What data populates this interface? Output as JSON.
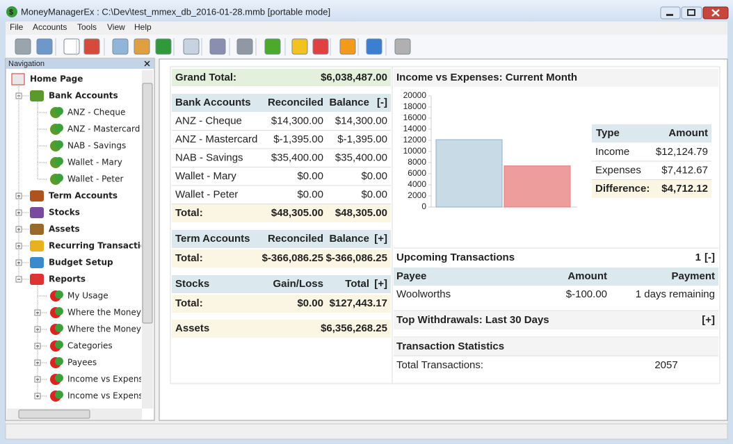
{
  "window": {
    "title": "MoneyManagerEx : C:\\Dev\\test_mmex_db_2016-01-28.mmb [portable mode]"
  },
  "menu": [
    "File",
    "Accounts",
    "Tools",
    "View",
    "Help"
  ],
  "navigation": {
    "title": "Navigation",
    "home": "Home Page",
    "groups": [
      {
        "label": "Bank Accounts",
        "children": [
          "ANZ - Cheque",
          "ANZ - Mastercard",
          "NAB - Savings",
          "Wallet - Mary",
          "Wallet - Peter"
        ]
      },
      {
        "label": "Term Accounts",
        "children": []
      },
      {
        "label": "Stocks",
        "children": []
      },
      {
        "label": "Assets",
        "children": []
      },
      {
        "label": "Recurring Transactions",
        "children": []
      },
      {
        "label": "Budget Setup",
        "children": []
      },
      {
        "label": "Reports",
        "children": [
          "My Usage",
          "Where the Money G",
          "Where the Money C",
          "Categories",
          "Payees",
          "Income vs Expenses",
          "Income vs Expenses"
        ]
      }
    ]
  },
  "summary": {
    "grand_total": {
      "label": "Grand Total:",
      "value": "$6,038,487.00"
    },
    "bank_accounts": {
      "headers": [
        "Bank Accounts",
        "Reconciled",
        "Balance"
      ],
      "toggle": "[-]",
      "rows": [
        [
          "ANZ - Cheque",
          "$14,300.00",
          "$14,300.00"
        ],
        [
          "ANZ - Mastercard",
          "$-1,395.00",
          "$-1,395.00"
        ],
        [
          "NAB - Savings",
          "$35,400.00",
          "$35,400.00"
        ],
        [
          "Wallet - Mary",
          "$0.00",
          "$0.00"
        ],
        [
          "Wallet - Peter",
          "$0.00",
          "$0.00"
        ]
      ],
      "total": [
        "Total:",
        "$48,305.00",
        "$48,305.00"
      ]
    },
    "term_accounts": {
      "headers": [
        "Term Accounts",
        "Reconciled",
        "Balance"
      ],
      "toggle": "[+]",
      "total": [
        "Total:",
        "$-366,086.25",
        "$-366,086.25"
      ]
    },
    "stocks": {
      "headers": [
        "Stocks",
        "Gain/Loss",
        "Total"
      ],
      "toggle": "[+]",
      "total": [
        "Total:",
        "$0.00",
        "$127,443.17"
      ]
    },
    "assets": {
      "label": "Assets",
      "value": "$6,356,268.25"
    }
  },
  "income_expenses": {
    "title": "Income vs Expenses: Current Month",
    "chart": {
      "type": "bar",
      "values": [
        12124.79,
        7412.67
      ],
      "colors": [
        "#c7dae6",
        "#ee9d9d"
      ],
      "ylim": [
        0,
        20000
      ],
      "yticks": [
        0,
        2000,
        4000,
        6000,
        8000,
        10000,
        12000,
        14000,
        16000,
        18000,
        20000
      ]
    },
    "table": {
      "headers": [
        "Type",
        "Amount"
      ],
      "rows": [
        [
          "Income",
          "$12,124.79"
        ],
        [
          "Expenses",
          "$7,412.67"
        ]
      ],
      "total": [
        "Difference:",
        "$4,712.12"
      ]
    }
  },
  "upcoming": {
    "title": "Upcoming Transactions",
    "count": 1,
    "toggle": "[-]",
    "headers": [
      "Payee",
      "Amount",
      "Payment"
    ],
    "rows": [
      [
        "Woolworths",
        "$-100.00",
        "1 days remaining"
      ]
    ]
  },
  "top_withdrawals": {
    "title": "Top Withdrawals: Last 30 Days",
    "toggle": "[+]"
  },
  "statistics": {
    "title": "Transaction Statistics",
    "rows": [
      [
        "Total Transactions:",
        2057
      ]
    ]
  }
}
